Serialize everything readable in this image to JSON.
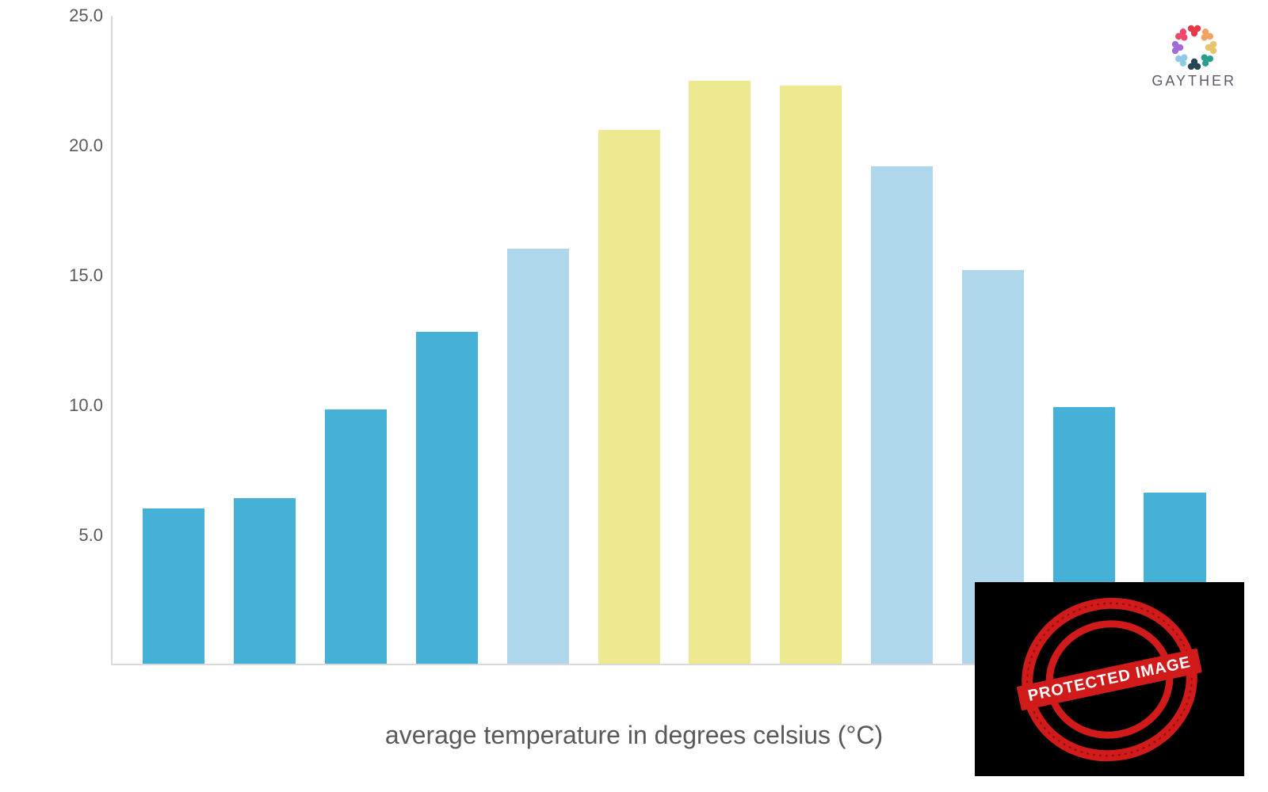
{
  "chart": {
    "type": "bar",
    "x_title": "average temperature in degrees celsius (°C)",
    "ylim": [
      0,
      25
    ],
    "ytick_step": 5,
    "ytick_labels": [
      "5.0",
      "10.0",
      "15.0",
      "20.0",
      "25.0"
    ],
    "ytick_values": [
      5,
      10,
      15,
      20,
      25
    ],
    "axis_color": "#d9d9d9",
    "label_color": "#595959",
    "label_fontsize": 22,
    "title_fontsize": 32,
    "background_color": "#ffffff",
    "bar_width_ratio": 0.68,
    "values": [
      6.0,
      6.4,
      9.8,
      12.8,
      16.0,
      20.6,
      22.5,
      22.3,
      19.2,
      15.2,
      9.9,
      6.6
    ],
    "bar_colors": [
      "#46b1d6",
      "#46b1d6",
      "#46b1d6",
      "#46b1d6",
      "#aed7ec",
      "#ece991",
      "#ece991",
      "#ece991",
      "#aed7ec",
      "#aed7ec",
      "#46b1d6",
      "#46b1d6"
    ]
  },
  "brand": {
    "name": "GAYTHER",
    "logo_colors": [
      "#e63946",
      "#f4a261",
      "#e9c46a",
      "#2a9d8f",
      "#264653",
      "#8ecae6",
      "#a06cd5",
      "#ef476f"
    ]
  },
  "stamp": {
    "label": "PROTECTED IMAGE",
    "ring_color": "#d11a1a",
    "bg_color": "#000000",
    "text_color": "#ffffff"
  }
}
